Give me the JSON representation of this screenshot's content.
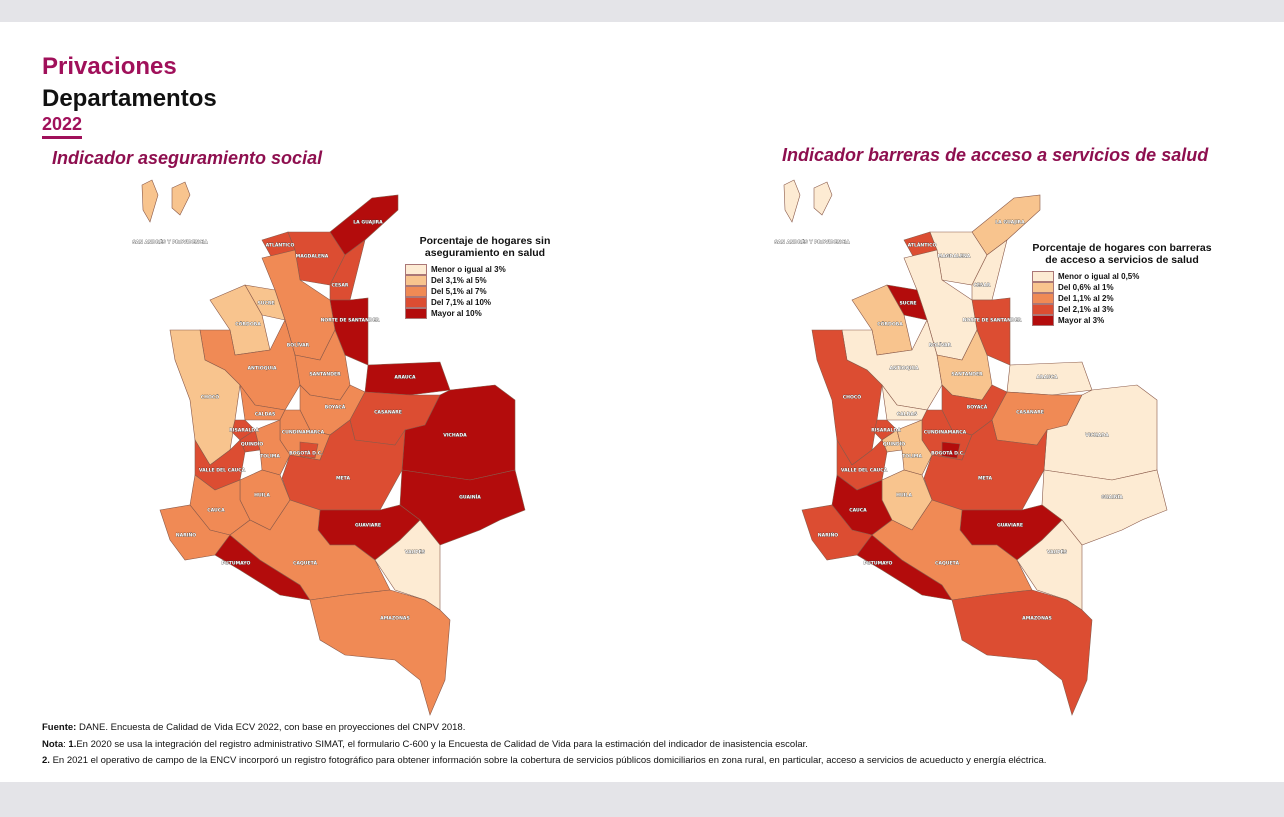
{
  "header": {
    "title": "Privaciones",
    "subtitle": "Departamentos",
    "year": "2022"
  },
  "maps": [
    {
      "title": "Indicador aseguramiento social",
      "legend": {
        "title": "Porcentaje de hogares sin aseguramiento en salud",
        "items": [
          {
            "label": "Menor o igual al 3%",
            "color": "#fdebd3"
          },
          {
            "label": "Del 3,1% al 5%",
            "color": "#f8c48e"
          },
          {
            "label": "Del 5,1% al 7%",
            "color": "#f08a55"
          },
          {
            "label": "Del 7,1% al 10%",
            "color": "#dc4d32"
          },
          {
            "label": "Mayor al 10%",
            "color": "#b30c0c"
          }
        ]
      },
      "departments": [
        {
          "name": "SAN ANDRÉS Y PROVIDENCIA",
          "color": "#f8c48e"
        },
        {
          "name": "LA GUAJIRA",
          "color": "#b30c0c"
        },
        {
          "name": "ATLÁNTICO",
          "color": "#dc4d32"
        },
        {
          "name": "MAGDALENA",
          "color": "#dc4d32"
        },
        {
          "name": "CESAR",
          "color": "#dc4d32"
        },
        {
          "name": "NORTE DE SANTANDER",
          "color": "#b30c0c"
        },
        {
          "name": "BOLÍVAR",
          "color": "#f08a55"
        },
        {
          "name": "SUCRE",
          "color": "#f8c48e"
        },
        {
          "name": "CÓRDOBA",
          "color": "#f8c48e"
        },
        {
          "name": "ANTIOQUIA",
          "color": "#f08a55"
        },
        {
          "name": "CHOCÓ",
          "color": "#f8c48e"
        },
        {
          "name": "SANTANDER",
          "color": "#f08a55"
        },
        {
          "name": "ARAUCA",
          "color": "#b30c0c"
        },
        {
          "name": "BOYACÁ",
          "color": "#f08a55"
        },
        {
          "name": "CASANARE",
          "color": "#dc4d32"
        },
        {
          "name": "VICHADA",
          "color": "#b30c0c"
        },
        {
          "name": "CALDAS",
          "color": "#f08a55"
        },
        {
          "name": "RISARALDA",
          "color": "#dc4d32"
        },
        {
          "name": "QUINDÍO",
          "color": "#dc4d32"
        },
        {
          "name": "CUNDINAMARCA",
          "color": "#f08a55"
        },
        {
          "name": "BOGOTÁ D.C.",
          "color": "#dc4d32"
        },
        {
          "name": "TOLIMA",
          "color": "#f08a55"
        },
        {
          "name": "VALLE DEL CAUCA",
          "color": "#dc4d32"
        },
        {
          "name": "META",
          "color": "#dc4d32"
        },
        {
          "name": "HUILA",
          "color": "#f08a55"
        },
        {
          "name": "CAUCA",
          "color": "#f08a55"
        },
        {
          "name": "GUAINÍA",
          "color": "#b30c0c"
        },
        {
          "name": "GUAVIARE",
          "color": "#b30c0c"
        },
        {
          "name": "NARIÑO",
          "color": "#f08a55"
        },
        {
          "name": "PUTUMAYO",
          "color": "#b30c0c"
        },
        {
          "name": "CAQUETÁ",
          "color": "#f08a55"
        },
        {
          "name": "VAUPÉS",
          "color": "#fdebd3"
        },
        {
          "name": "AMAZONAS",
          "color": "#f08a55"
        }
      ]
    },
    {
      "title": "Indicador barreras de acceso a servicios de salud",
      "legend": {
        "title": "Porcentaje de hogares con barreras de acceso a servicios de salud",
        "items": [
          {
            "label": "Menor o igual al 0,5%",
            "color": "#fdebd3"
          },
          {
            "label": "Del 0,6% al 1%",
            "color": "#f8c48e"
          },
          {
            "label": "Del 1,1% al 2%",
            "color": "#f08a55"
          },
          {
            "label": "Del 2,1% al 3%",
            "color": "#dc4d32"
          },
          {
            "label": "Mayor al 3%",
            "color": "#b30c0c"
          }
        ]
      },
      "departments": [
        {
          "name": "SAN ANDRÉS Y PROVIDENCIA",
          "color": "#fdebd3"
        },
        {
          "name": "LA GUAJIRA",
          "color": "#f8c48e"
        },
        {
          "name": "ATLÁNTICO",
          "color": "#dc4d32"
        },
        {
          "name": "MAGDALENA",
          "color": "#fdebd3"
        },
        {
          "name": "CESAR",
          "color": "#fdebd3"
        },
        {
          "name": "NORTE DE SANTANDER",
          "color": "#dc4d32"
        },
        {
          "name": "BOLÍVAR",
          "color": "#fdebd3"
        },
        {
          "name": "SUCRE",
          "color": "#b30c0c"
        },
        {
          "name": "CÓRDOBA",
          "color": "#f8c48e"
        },
        {
          "name": "ANTIOQUIA",
          "color": "#fdebd3"
        },
        {
          "name": "CHOCÓ",
          "color": "#dc4d32"
        },
        {
          "name": "SANTANDER",
          "color": "#f8c48e"
        },
        {
          "name": "ARAUCA",
          "color": "#fdebd3"
        },
        {
          "name": "BOYACÁ",
          "color": "#dc4d32"
        },
        {
          "name": "CASANARE",
          "color": "#f08a55"
        },
        {
          "name": "VICHADA",
          "color": "#fdebd3"
        },
        {
          "name": "CALDAS",
          "color": "#fdebd3"
        },
        {
          "name": "RISARALDA",
          "color": "#dc4d32"
        },
        {
          "name": "QUINDÍO",
          "color": "#f8c48e"
        },
        {
          "name": "CUNDINAMARCA",
          "color": "#dc4d32"
        },
        {
          "name": "BOGOTÁ D.C.",
          "color": "#b30c0c"
        },
        {
          "name": "TOLIMA",
          "color": "#f8c48e"
        },
        {
          "name": "VALLE DEL CAUCA",
          "color": "#dc4d32"
        },
        {
          "name": "META",
          "color": "#dc4d32"
        },
        {
          "name": "HUILA",
          "color": "#f8c48e"
        },
        {
          "name": "CAUCA",
          "color": "#b30c0c"
        },
        {
          "name": "GUAINÍA",
          "color": "#fdebd3"
        },
        {
          "name": "GUAVIARE",
          "color": "#b30c0c"
        },
        {
          "name": "NARIÑO",
          "color": "#dc4d32"
        },
        {
          "name": "PUTUMAYO",
          "color": "#b30c0c"
        },
        {
          "name": "CAQUETÁ",
          "color": "#f08a55"
        },
        {
          "name": "VAUPÉS",
          "color": "#fdebd3"
        },
        {
          "name": "AMAZONAS",
          "color": "#dc4d32"
        }
      ]
    }
  ],
  "footer": {
    "source_label": "Fuente:",
    "source": "DANE. Encuesta de Calidad de Vida ECV 2022, con base en proyecciones del CNPV 2018.",
    "note_label": "Nota",
    "note1_label": "1.",
    "note1": "En 2020 se usa la integración del registro administrativo SIMAT, el formulario C-600 y la Encuesta de Calidad de Vida para la estimación del indicador de inasistencia escolar.",
    "note2_label": "2.",
    "note2": "En 2021 el operativo de campo de la ENCV incorporó un registro fotográfico para obtener información sobre la cobertura de servicios públicos domiciliarios en zona rural, en particular, acceso a servicios de acueducto y energía eléctrica."
  }
}
